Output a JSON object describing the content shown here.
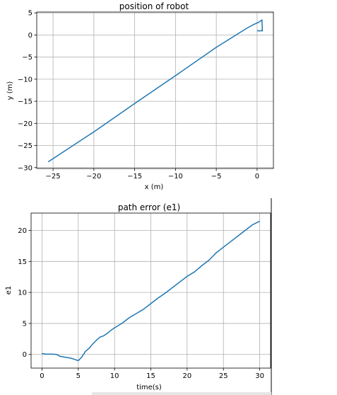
{
  "chart_data": [
    {
      "type": "line",
      "title": "position of robot",
      "xlabel": "x (m)",
      "ylabel": "y (m)",
      "xlim": [
        -27,
        2
      ],
      "ylim": [
        -30.2,
        5.2
      ],
      "xticks": [
        -25,
        -20,
        -15,
        -10,
        -5,
        0
      ],
      "xtick_labels": [
        "−25",
        "−20",
        "−15",
        "−10",
        "−5",
        "0"
      ],
      "yticks": [
        5,
        0,
        -5,
        -10,
        -15,
        -20,
        -25,
        -30
      ],
      "ytick_labels": [
        "5",
        "0",
        "−5",
        "−10",
        "−15",
        "−20",
        "−25",
        "−30"
      ],
      "grid": true,
      "series": [
        {
          "name": "robot position",
          "color": "#1f77b4",
          "x": [
            -25.6,
            -20,
            -15,
            -10,
            -5,
            -1.2,
            -0.5,
            0.2,
            0.6,
            0.65,
            0.45,
            0.3,
            0
          ],
          "y": [
            -28.7,
            -21.9,
            -15.5,
            -9.2,
            -2.8,
            1.6,
            2.3,
            2.9,
            3.4,
            0.9,
            1.0,
            0.9,
            1.0
          ]
        }
      ]
    },
    {
      "type": "line",
      "title": "path error (e1)",
      "xlabel": "time(s)",
      "ylabel": "e1",
      "xlim": [
        -1.5,
        31.5
      ],
      "ylim": [
        -2.2,
        22.8
      ],
      "xticks": [
        0,
        5,
        10,
        15,
        20,
        25,
        30
      ],
      "xtick_labels": [
        "0",
        "5",
        "10",
        "15",
        "20",
        "25",
        "30"
      ],
      "yticks": [
        0,
        5,
        10,
        15,
        20
      ],
      "ytick_labels": [
        "0",
        "5",
        "10",
        "15",
        "20"
      ],
      "grid": true,
      "series": [
        {
          "name": "e1",
          "color": "#1f77b4",
          "x": [
            0,
            0.5,
            1,
            1.5,
            2,
            2.5,
            3,
            3.5,
            4,
            4.5,
            5,
            5.5,
            6,
            6.5,
            7,
            7.5,
            8,
            8.5,
            9,
            9.5,
            10,
            11,
            12,
            13,
            14,
            15,
            16,
            17,
            18,
            19,
            20,
            21,
            22,
            23,
            24,
            25,
            26,
            27,
            28,
            29,
            30
          ],
          "y": [
            0.15,
            0.05,
            0.05,
            0.05,
            0.0,
            -0.3,
            -0.4,
            -0.5,
            -0.6,
            -0.8,
            -1.0,
            -0.4,
            0.5,
            1.0,
            1.7,
            2.3,
            2.8,
            3.0,
            3.4,
            3.9,
            4.3,
            5.0,
            5.9,
            6.6,
            7.3,
            8.2,
            9.1,
            9.9,
            10.8,
            11.7,
            12.6,
            13.3,
            14.3,
            15.2,
            16.4,
            17.3,
            18.2,
            19.1,
            20.0,
            20.9,
            21.5
          ]
        }
      ]
    }
  ]
}
